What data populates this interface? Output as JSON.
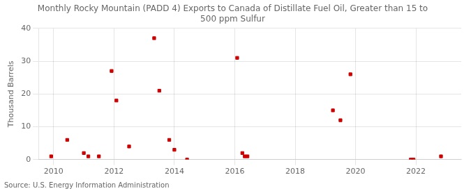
{
  "chart_data": {
    "type": "scatter",
    "title": "Monthly Rocky Mountain (PADD 4) Exports to Canada of Distillate Fuel Oil, Greater than 15 to\n500 ppm Sulfur",
    "ylabel": "Thousand Barrels",
    "source": "Source: U.S. Energy Information Administration",
    "x": [
      2009.92,
      2010.45,
      2011.0,
      2011.15,
      2011.5,
      2011.92,
      2012.08,
      2012.5,
      2013.33,
      2013.5,
      2013.83,
      2014.0,
      2014.42,
      2016.08,
      2016.25,
      2016.33,
      2016.42,
      2019.25,
      2019.5,
      2019.83,
      2021.83,
      2021.92,
      2022.83
    ],
    "values": [
      1,
      6,
      2,
      1,
      1,
      27,
      18,
      4,
      37,
      21,
      6,
      3,
      0,
      31,
      2,
      1,
      1,
      15,
      12,
      26,
      0,
      0,
      1
    ],
    "color": "#cc0000",
    "marker": "square",
    "xlim": [
      2009.5,
      2023.5
    ],
    "ylim": [
      0,
      40
    ],
    "xticks": [
      2010,
      2012,
      2014,
      2016,
      2018,
      2020,
      2022
    ],
    "yticks": [
      0,
      10,
      20,
      30,
      40
    ],
    "grid": true
  }
}
